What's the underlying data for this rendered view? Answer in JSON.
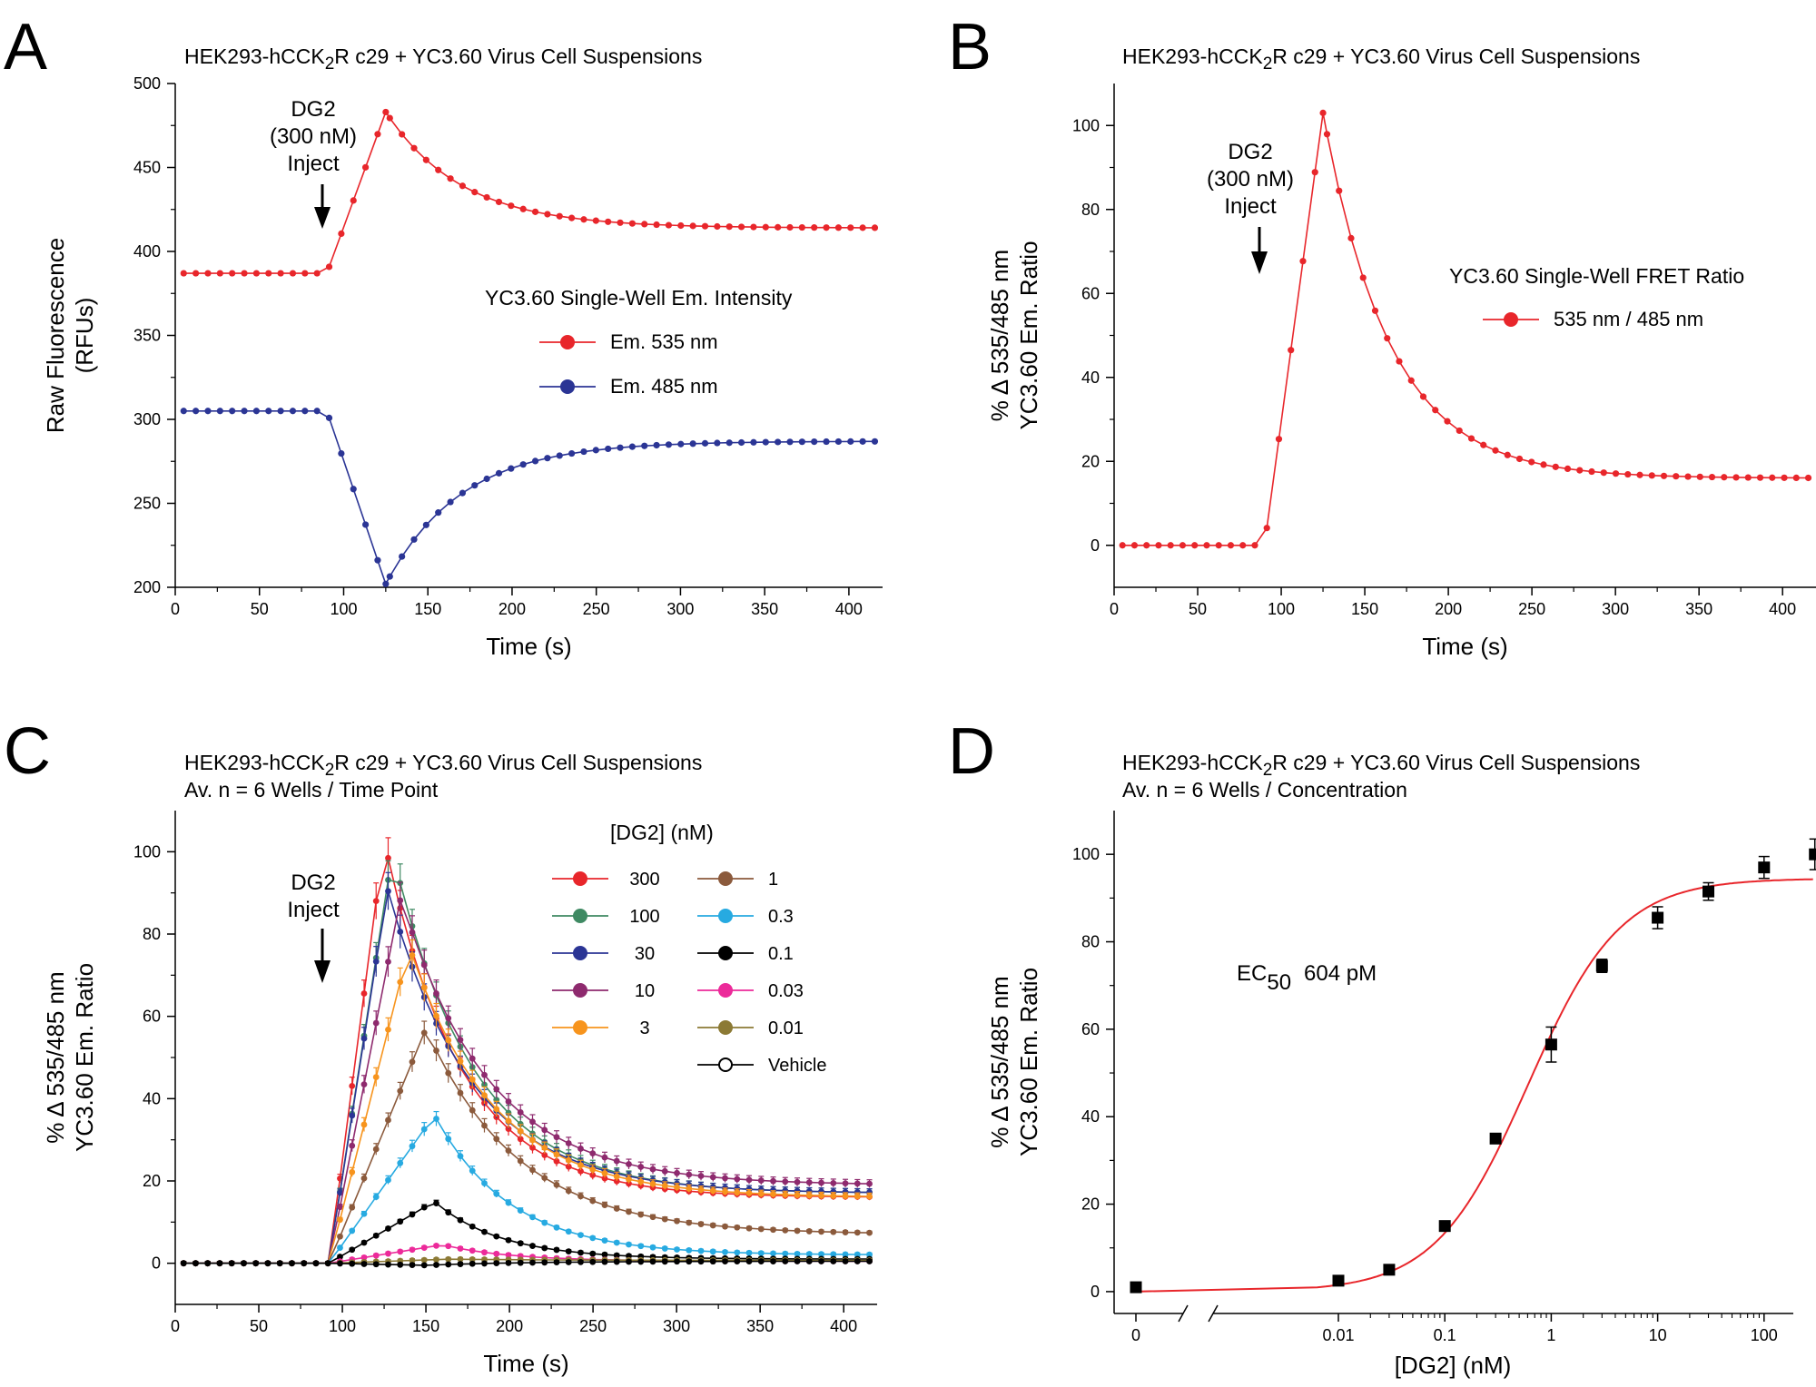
{
  "colors": {
    "s300": "#e8262b",
    "s100": "#3f8a63",
    "s30": "#2b3595",
    "s10": "#8e2a6e",
    "s3": "#f7941d",
    "s1": "#8b5a3c",
    "s03": "#27aae1",
    "s01": "#000000",
    "s003": "#ec2a9a",
    "s001": "#8c7a35",
    "veh": "#000000",
    "em535": "#e8262b",
    "em485": "#2b3595",
    "fret": "#e8262b",
    "fit": "#e8262b"
  },
  "panels": {
    "A": {
      "letter": "A",
      "title_pre": "HEK293-hCCK",
      "title_sub": "2",
      "title_post": "R c29 + YC3.60 Virus Cell Suspensions",
      "inject_lines": [
        "DG2",
        "(300 nM)",
        "Inject"
      ],
      "legend_title": "YC3.60 Single-Well Em. Intensity",
      "legend": [
        "Em. 535 nm",
        "Em. 485 nm"
      ]
    },
    "B": {
      "letter": "B",
      "title_pre": "HEK293-hCCK",
      "title_sub": "2",
      "title_post": "R c29 + YC3.60 Virus Cell Suspensions",
      "inject_lines": [
        "DG2",
        "(300 nM)",
        "Inject"
      ],
      "legend_title": "YC3.60 Single-Well FRET Ratio",
      "legend": [
        "535 nm / 485 nm"
      ]
    },
    "C": {
      "letter": "C",
      "title_pre": "HEK293-hCCK",
      "title_sub": "2",
      "title_post": "R c29 + YC3.60 Virus Cell Suspensions",
      "subtitle": "Av. n = 6 Wells / Time Point",
      "inject_lines": [
        "DG2",
        "Inject"
      ],
      "legend_title": "[DG2] (nM)",
      "legend": [
        "300",
        "100",
        "30",
        "10",
        "3",
        "1",
        "0.3",
        "0.1",
        "0.03",
        "0.01",
        "Vehicle"
      ]
    },
    "D": {
      "letter": "D",
      "title_pre": "HEK293-hCCK",
      "title_sub": "2",
      "title_post": "R c29 + YC3.60 Virus Cell Suspensions",
      "subtitle": "Av. n = 6 Wells / Concentration",
      "ec_label": "EC",
      "ec_sub": "50",
      "ec_value": "604 pM"
    }
  },
  "chart_data": [
    {
      "id": "A",
      "type": "line",
      "xlabel": "Time (s)",
      "ylabel": [
        "Raw Fluorescence",
        "(RFUs)"
      ],
      "xlim": [
        0,
        420
      ],
      "ylim": [
        200,
        500
      ],
      "xticks": [
        0,
        50,
        100,
        150,
        200,
        250,
        300,
        350,
        400
      ],
      "yticks": [
        200,
        250,
        300,
        350,
        400,
        450,
        500
      ],
      "series": [
        {
          "name": "Em. 535 nm",
          "baseline": 387,
          "inject": 90,
          "rise_end": 125,
          "peak": 483,
          "plateau": 414,
          "tau": 45
        },
        {
          "name": "Em. 485 nm",
          "baseline": 305,
          "inject": 90,
          "rise_end": 125,
          "peak": 202,
          "plateau": 287,
          "tau": 45
        }
      ]
    },
    {
      "id": "B",
      "type": "line",
      "xlabel": "Time (s)",
      "ylabel": [
        "% Δ 535/485 nm",
        "YC3.60 Em. Ratio"
      ],
      "xlim": [
        0,
        420
      ],
      "ylim": [
        -10,
        110
      ],
      "xticks": [
        0,
        50,
        100,
        150,
        200,
        250,
        300,
        350,
        400
      ],
      "yticks": [
        0,
        20,
        40,
        60,
        80,
        100
      ],
      "series": [
        {
          "name": "535 nm / 485 nm",
          "baseline": 0,
          "inject": 90,
          "rise_end": 125,
          "peak": 103,
          "plateau": 16,
          "tau": 40
        }
      ]
    },
    {
      "id": "C",
      "type": "line",
      "xlabel": "Time (s)",
      "ylabel": [
        "% Δ 535/485 nm",
        "YC3.60 Em. Ratio"
      ],
      "xlim": [
        0,
        420
      ],
      "ylim": [
        -10,
        110
      ],
      "xticks": [
        0,
        50,
        100,
        150,
        200,
        250,
        300,
        350,
        400
      ],
      "yticks": [
        0,
        20,
        40,
        60,
        80,
        100
      ],
      "series": [
        {
          "name": "300",
          "peak": 103,
          "peak_t": 125,
          "plateau": 16,
          "tau": 45
        },
        {
          "name": "100",
          "peak": 100,
          "peak_t": 130,
          "plateau": 17,
          "tau": 48
        },
        {
          "name": "30",
          "peak": 91,
          "peak_t": 127,
          "plateau": 17,
          "tau": 50
        },
        {
          "name": "10",
          "peak": 89,
          "peak_t": 135,
          "plateau": 19,
          "tau": 52
        },
        {
          "name": "3",
          "peak": 77,
          "peak_t": 140,
          "plateau": 16,
          "tau": 50
        },
        {
          "name": "1",
          "peak": 57,
          "peak_t": 150,
          "plateau": 7,
          "tau": 55
        },
        {
          "name": "0.3",
          "peak": 36,
          "peak_t": 155,
          "plateau": 2,
          "tau": 45
        },
        {
          "name": "0.1",
          "peak": 15,
          "peak_t": 155,
          "plateau": 1,
          "tau": 40
        },
        {
          "name": "0.03",
          "peak": 4.5,
          "peak_t": 160,
          "plateau": 0.5,
          "tau": 40
        },
        {
          "name": "0.01",
          "peak": 1,
          "peak_t": 165,
          "plateau": 0.7,
          "tau": 60
        },
        {
          "name": "Vehicle",
          "peak": -0.5,
          "peak_t": 150,
          "plateau": 0.5,
          "tau": 60
        }
      ]
    },
    {
      "id": "D",
      "type": "scatter",
      "xlabel": "[DG2] (nM)",
      "ylabel": [
        "% Δ 535/485 nm",
        "YC3.60 Em. Ratio"
      ],
      "xscale": "log",
      "ylim": [
        -5,
        110
      ],
      "xticks": [
        "0",
        "0.01",
        "0.1",
        "1",
        "10",
        "100"
      ],
      "yticks": [
        0,
        20,
        40,
        60,
        80,
        100
      ],
      "points": [
        {
          "x": 0,
          "y": 1,
          "err": 1
        },
        {
          "x": 0.01,
          "y": 2.5,
          "err": 1
        },
        {
          "x": 0.03,
          "y": 5,
          "err": 1
        },
        {
          "x": 0.1,
          "y": 15,
          "err": 1
        },
        {
          "x": 0.3,
          "y": 35,
          "err": 1
        },
        {
          "x": 1,
          "y": 56.5,
          "err": 4
        },
        {
          "x": 3,
          "y": 74.5,
          "err": 1.5
        },
        {
          "x": 10,
          "y": 85.5,
          "err": 2.5
        },
        {
          "x": 30,
          "y": 91.5,
          "err": 2
        },
        {
          "x": 100,
          "y": 97,
          "err": 2.5
        },
        {
          "x": 300,
          "y": 100,
          "err": 3.5
        }
      ],
      "fit": {
        "bottom": 0,
        "top": 94.5,
        "ec50_nM": 0.604,
        "hill": 1
      }
    }
  ]
}
